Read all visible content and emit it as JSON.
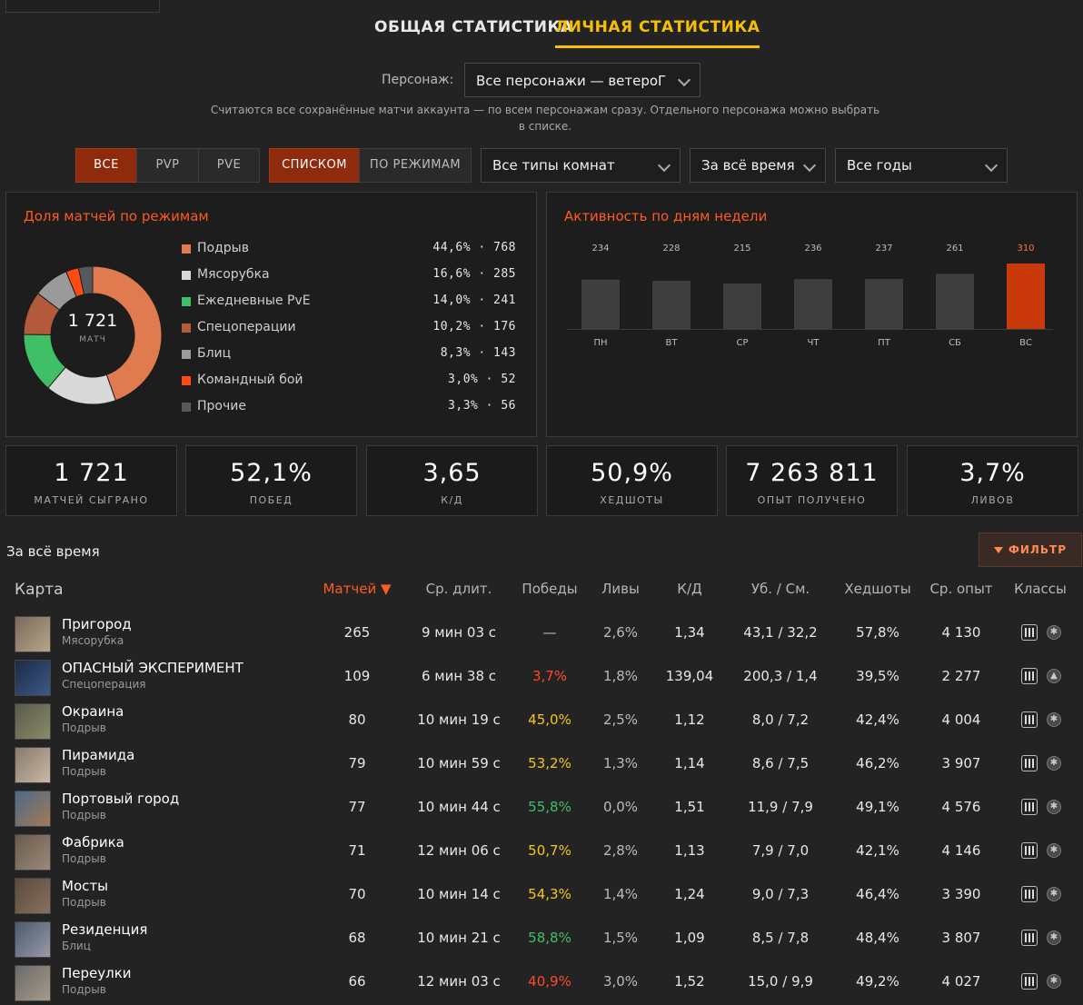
{
  "tabs": [
    {
      "label": "ОБЩАЯ СТАТИСТИКА"
    },
    {
      "label": "ЛИЧНАЯ СТАТИСТИКА"
    }
  ],
  "character": {
    "label": "Персонаж:",
    "value": "Все персонажи — ветероГ"
  },
  "note": "Считаются все сохранённые матчи аккаунта — по всем персонажам сразу. Отдельного персонажа можно выбрать в списке.",
  "filters": {
    "mode_tabs": [
      "ВСЕ",
      "PVP",
      "PVE"
    ],
    "view_tabs": [
      "СПИСКОМ",
      "ПО РЕЖИМАМ"
    ],
    "room_type": "Все типы комнат",
    "period": "За всё время",
    "years": "Все годы"
  },
  "colors": {
    "accent": "#ff5a1f",
    "tab_active": "#f6c000"
  },
  "modes_panel": {
    "title": "Доля матчей по режимам",
    "total": "1 721",
    "total_label": "матч",
    "items": [
      {
        "name": "Подрыв",
        "value": "44,6% · 768",
        "pct": 44.6,
        "color": "#e07a4f"
      },
      {
        "name": "Мясорубка",
        "value": "16,6% · 285",
        "pct": 16.6,
        "color": "#d9d9d9"
      },
      {
        "name": "Ежедневные PvE",
        "value": "14,0% · 241",
        "pct": 14.0,
        "color": "#3fbf66"
      },
      {
        "name": "Спецоперации",
        "value": "10,2% · 176",
        "pct": 10.2,
        "color": "#b35a3c"
      },
      {
        "name": "Блиц",
        "value": "8,3% · 143",
        "pct": 8.3,
        "color": "#9a9a9a"
      },
      {
        "name": "Командный бой",
        "value": "3,0% · 52",
        "pct": 3.0,
        "color": "#ff4a12"
      },
      {
        "name": "Прочие",
        "value": "3,3% · 56",
        "pct": 3.3,
        "color": "#555a5f"
      }
    ]
  },
  "chart_data": {
    "type": "bar",
    "title": "Активность по дням недели",
    "categories": [
      "ПН",
      "ВТ",
      "СР",
      "ЧТ",
      "ПТ",
      "СБ",
      "ВС"
    ],
    "values": [
      234,
      228,
      215,
      236,
      237,
      261,
      310
    ],
    "highlight_index": 6
  },
  "stats": [
    {
      "value": "1 721",
      "label": "МАТЧЕЙ СЫГРАНО"
    },
    {
      "value": "52,1%",
      "label": "ПОБЕД"
    },
    {
      "value": "3,65",
      "label": "К/Д"
    },
    {
      "value": "50,9%",
      "label": "ХЕДШОТЫ"
    },
    {
      "value": "7 263 811",
      "label": "ОПЫТ ПОЛУЧЕНО"
    },
    {
      "value": "3,7%",
      "label": "ЛИВОВ"
    }
  ],
  "table": {
    "period": "За всё время",
    "filter_label": "ФИЛЬТР",
    "headers": [
      "Карта",
      "Матчей ▼",
      "Ср. длит.",
      "Победы",
      "Ливы",
      "К/Д",
      "Уб. / См.",
      "Хедшоты",
      "Ср. опыт",
      "Классы"
    ],
    "rows": [
      {
        "name": "Пригород",
        "mode": "Мясорубка",
        "matches": "265",
        "dur": "9 мин 03 с",
        "wins": "—",
        "wins_color": "#bbbbbb",
        "leaves": "2,6%",
        "kd": "1,34",
        "ks": "43,1 / 32,2",
        "hs": "57,8%",
        "xp": "4 130"
      },
      {
        "name": "ОПАСНЫЙ ЭКСПЕРИМЕНТ",
        "mode": "Спецоперация",
        "matches": "109",
        "dur": "6 мин 38 с",
        "wins": "3,7%",
        "wins_color": "#ff4a2a",
        "leaves": "1,8%",
        "kd": "139,04",
        "ks": "200,3 / 1,4",
        "hs": "39,5%",
        "xp": "2 277"
      },
      {
        "name": "Окраина",
        "mode": "Подрыв",
        "matches": "80",
        "dur": "10 мин 19 с",
        "wins": "45,0%",
        "wins_color": "#f5c518",
        "leaves": "2,5%",
        "kd": "1,12",
        "ks": "8,0 / 7,2",
        "hs": "42,4%",
        "xp": "4 004"
      },
      {
        "name": "Пирамида",
        "mode": "Подрыв",
        "matches": "79",
        "dur": "10 мин 59 с",
        "wins": "53,2%",
        "wins_color": "#f5c518",
        "leaves": "1,3%",
        "kd": "1,14",
        "ks": "8,6 / 7,5",
        "hs": "46,2%",
        "xp": "3 907"
      },
      {
        "name": "Портовый город",
        "mode": "Подрыв",
        "matches": "77",
        "dur": "10 мин 44 с",
        "wins": "55,8%",
        "wins_color": "#3fbf66",
        "leaves": "0,0%",
        "kd": "1,51",
        "ks": "11,9 / 7,9",
        "hs": "49,1%",
        "xp": "4 576"
      },
      {
        "name": "Фабрика",
        "mode": "Подрыв",
        "matches": "71",
        "dur": "12 мин 06 с",
        "wins": "50,7%",
        "wins_color": "#f5c518",
        "leaves": "2,8%",
        "kd": "1,13",
        "ks": "7,9 / 7,0",
        "hs": "42,1%",
        "xp": "4 146"
      },
      {
        "name": "Мосты",
        "mode": "Подрыв",
        "matches": "70",
        "dur": "10 мин 14 с",
        "wins": "54,3%",
        "wins_color": "#f5c518",
        "leaves": "1,4%",
        "kd": "1,24",
        "ks": "9,0 / 7,3",
        "hs": "46,4%",
        "xp": "3 390"
      },
      {
        "name": "Резиденция",
        "mode": "Блиц",
        "matches": "68",
        "dur": "10 мин 21 с",
        "wins": "58,8%",
        "wins_color": "#3fbf66",
        "leaves": "1,5%",
        "kd": "1,09",
        "ks": "8,5 / 7,8",
        "hs": "48,4%",
        "xp": "3 807"
      },
      {
        "name": "Переулки",
        "mode": "Подрыв",
        "matches": "66",
        "dur": "12 мин 03 с",
        "wins": "40,9%",
        "wins_color": "#ff4a2a",
        "leaves": "3,0%",
        "kd": "1,52",
        "ks": "15,0 / 9,9",
        "hs": "49,2%",
        "xp": "4 027"
      }
    ]
  }
}
